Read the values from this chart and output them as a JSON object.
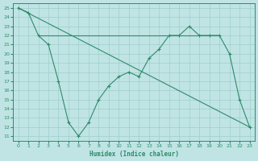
{
  "line1_x": [
    0,
    1,
    2,
    3,
    4,
    5,
    6,
    7,
    8,
    9,
    10,
    11,
    12,
    13,
    14,
    15,
    16,
    17,
    18,
    19,
    20,
    21,
    22,
    23
  ],
  "line1_y": [
    25,
    24.5,
    22,
    21,
    17,
    12.5,
    11,
    12.5,
    15,
    16.5,
    17.5,
    18,
    17.5,
    19.5,
    20.5,
    22,
    22,
    23,
    22,
    22,
    22,
    20,
    15,
    12
  ],
  "line2_x": [
    2,
    10,
    15,
    16,
    17,
    18,
    19,
    20
  ],
  "line2_y": [
    22,
    22,
    22,
    22,
    22,
    22,
    22,
    22
  ],
  "line3_x": [
    0,
    23
  ],
  "line3_y": [
    25,
    12
  ],
  "color": "#2e8b6a",
  "bg_color": "#c0e4e4",
  "grid_color": "#9ecece",
  "xlabel": "Humidex (Indice chaleur)",
  "xlim": [
    -0.5,
    23.5
  ],
  "ylim": [
    10.5,
    25.5
  ],
  "xticks": [
    0,
    1,
    2,
    3,
    4,
    5,
    6,
    7,
    8,
    9,
    10,
    11,
    12,
    13,
    14,
    15,
    16,
    17,
    18,
    19,
    20,
    21,
    22,
    23
  ],
  "yticks": [
    11,
    12,
    13,
    14,
    15,
    16,
    17,
    18,
    19,
    20,
    21,
    22,
    23,
    24,
    25
  ]
}
